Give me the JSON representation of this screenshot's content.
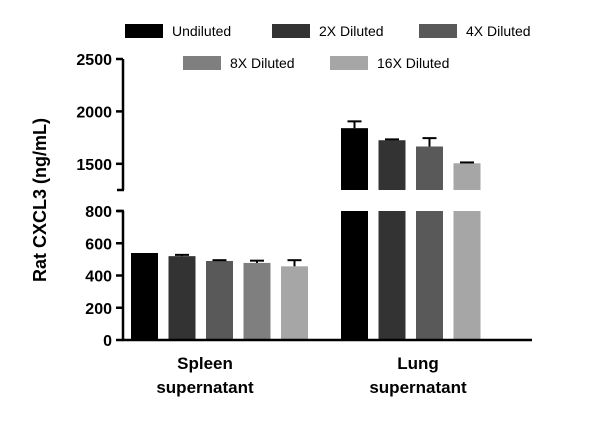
{
  "chart_data": {
    "type": "bar",
    "ylabel": "Rat CXCL3 (ng/mL)",
    "xlabel": "",
    "title": "",
    "categories": [
      "Spleen supernatant",
      "Lung supernatant"
    ],
    "category_lines": [
      [
        "Spleen",
        "supernatant"
      ],
      [
        "Lung",
        "supernatant"
      ]
    ],
    "axis_break": {
      "lower_range": [
        0,
        800
      ],
      "upper_range": [
        1250,
        2500
      ],
      "lower_ticks": [
        0,
        200,
        400,
        600,
        800
      ],
      "upper_ticks": [
        1500,
        2000,
        2500
      ]
    },
    "legend_placement": "top",
    "series": [
      {
        "name": "Undiluted",
        "color": "#000000",
        "values": [
          535,
          1840
        ],
        "errors": [
          0,
          65
        ]
      },
      {
        "name": "2X Diluted",
        "color": "#333333",
        "values": [
          520,
          1725
        ],
        "errors": [
          8,
          8
        ]
      },
      {
        "name": "4X Diluted",
        "color": "#595959",
        "values": [
          490,
          1665
        ],
        "errors": [
          5,
          80
        ]
      },
      {
        "name": "8X Diluted",
        "color": "#7f7f7f",
        "values": [
          478,
          0
        ],
        "errors": [
          14,
          0
        ]
      },
      {
        "name": "16X Diluted",
        "color": "#a6a6a6",
        "values": [
          457,
          1505
        ],
        "errors": [
          38,
          8
        ]
      }
    ],
    "lung_series_order": [
      0,
      1,
      2,
      4
    ]
  }
}
